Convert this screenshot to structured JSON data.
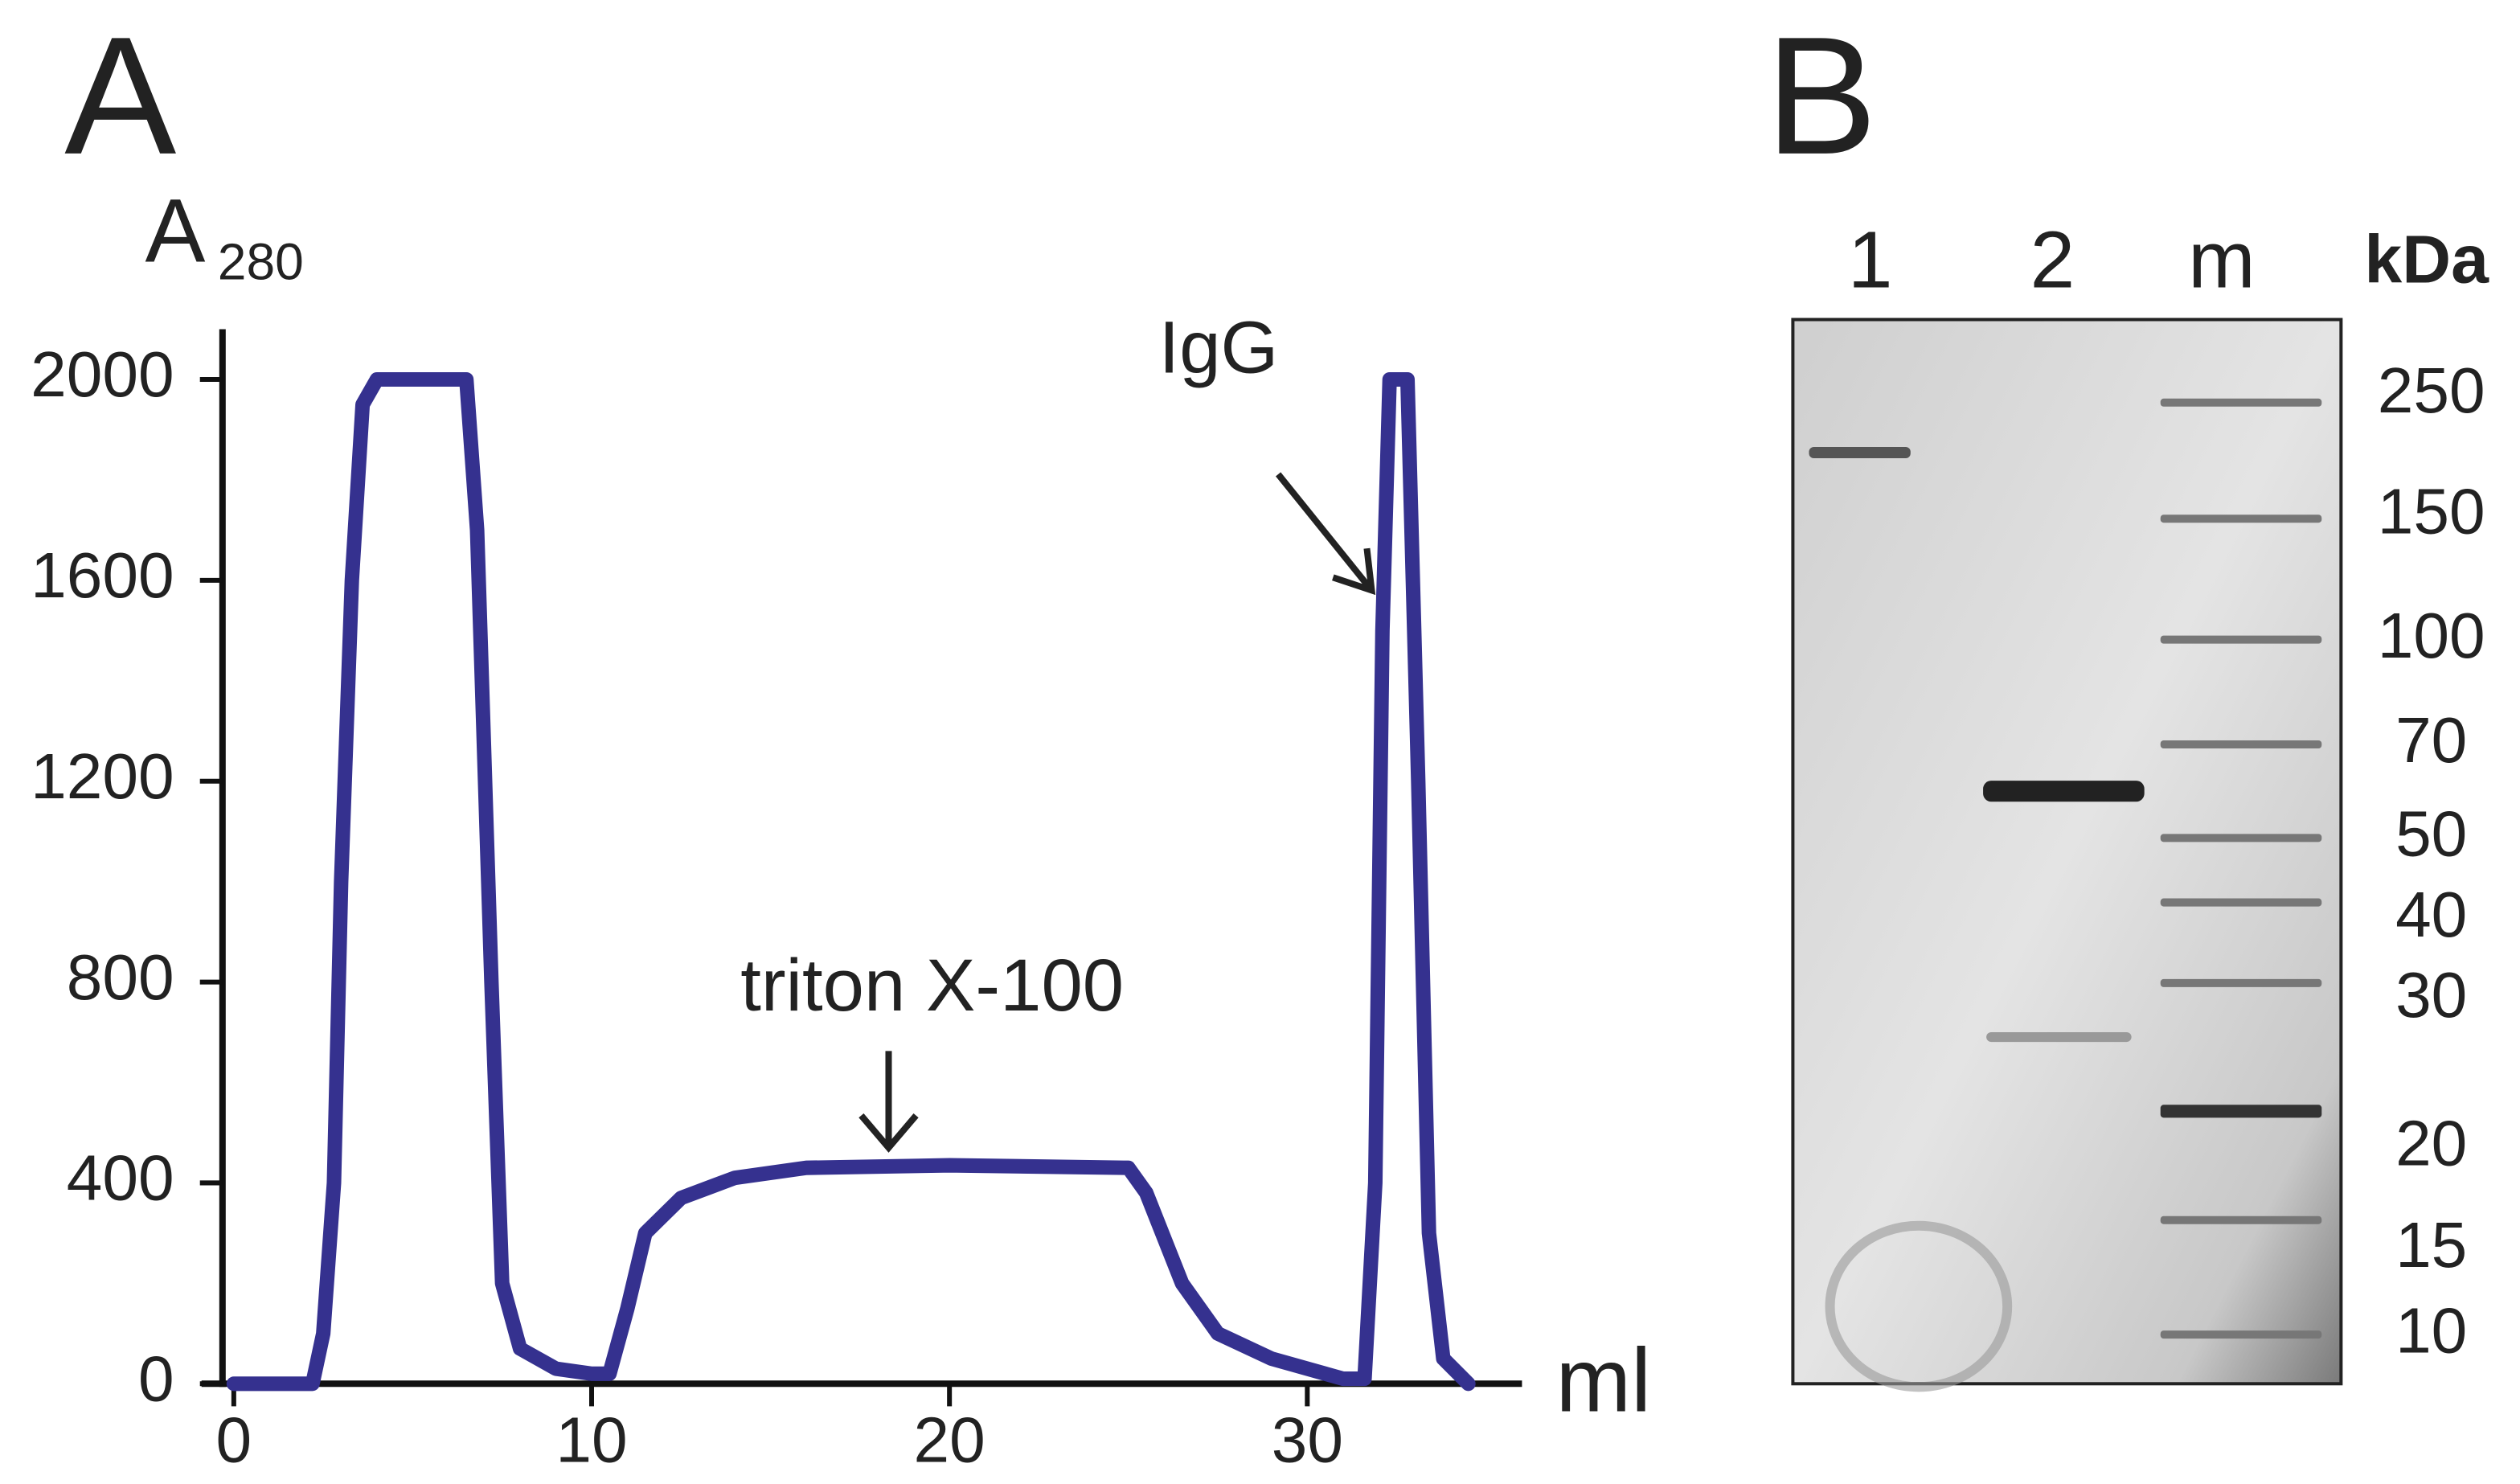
{
  "chart_data": {
    "type": "line",
    "panel_label": "A",
    "y_label": "A",
    "y_label_sub": "280",
    "x_label": "ml",
    "xlim": [
      0,
      36
    ],
    "xticks": [
      0,
      10,
      20,
      30
    ],
    "ylim": [
      0,
      2100
    ],
    "yticks": [
      0,
      400,
      800,
      1200,
      1600,
      2000
    ],
    "series": [
      {
        "color": "#35318f",
        "x": [
          0,
          2.2,
          2.5,
          2.8,
          3.0,
          3.3,
          3.6,
          4,
          6.5,
          6.8,
          7.2,
          7.5,
          8,
          9,
          10,
          10.5,
          11,
          11.5,
          12.5,
          14,
          16,
          20,
          25,
          25.5,
          26.5,
          27.5,
          29,
          31,
          31.6,
          31.9,
          32.1,
          32.3,
          32.8,
          33.1,
          33.4,
          33.8,
          34.5
        ],
        "values": [
          0,
          0,
          100,
          400,
          1000,
          1600,
          1950,
          2000,
          2000,
          1700,
          800,
          200,
          70,
          30,
          20,
          20,
          150,
          300,
          370,
          410,
          430,
          435,
          430,
          380,
          200,
          100,
          50,
          10,
          10,
          400,
          1500,
          2000,
          2000,
          1200,
          300,
          50,
          0
        ]
      }
    ],
    "annotations": [
      {
        "text": "triton X-100",
        "x": 18.3,
        "y": 470
      },
      {
        "text": "IgG",
        "x": 31.8,
        "y": 1580
      }
    ]
  },
  "gel": {
    "panel_label": "B",
    "lanes": [
      "1",
      "2",
      "m"
    ],
    "unit": "kDa",
    "markers": [
      250,
      150,
      100,
      70,
      50,
      40,
      30,
      20,
      15,
      10
    ]
  }
}
